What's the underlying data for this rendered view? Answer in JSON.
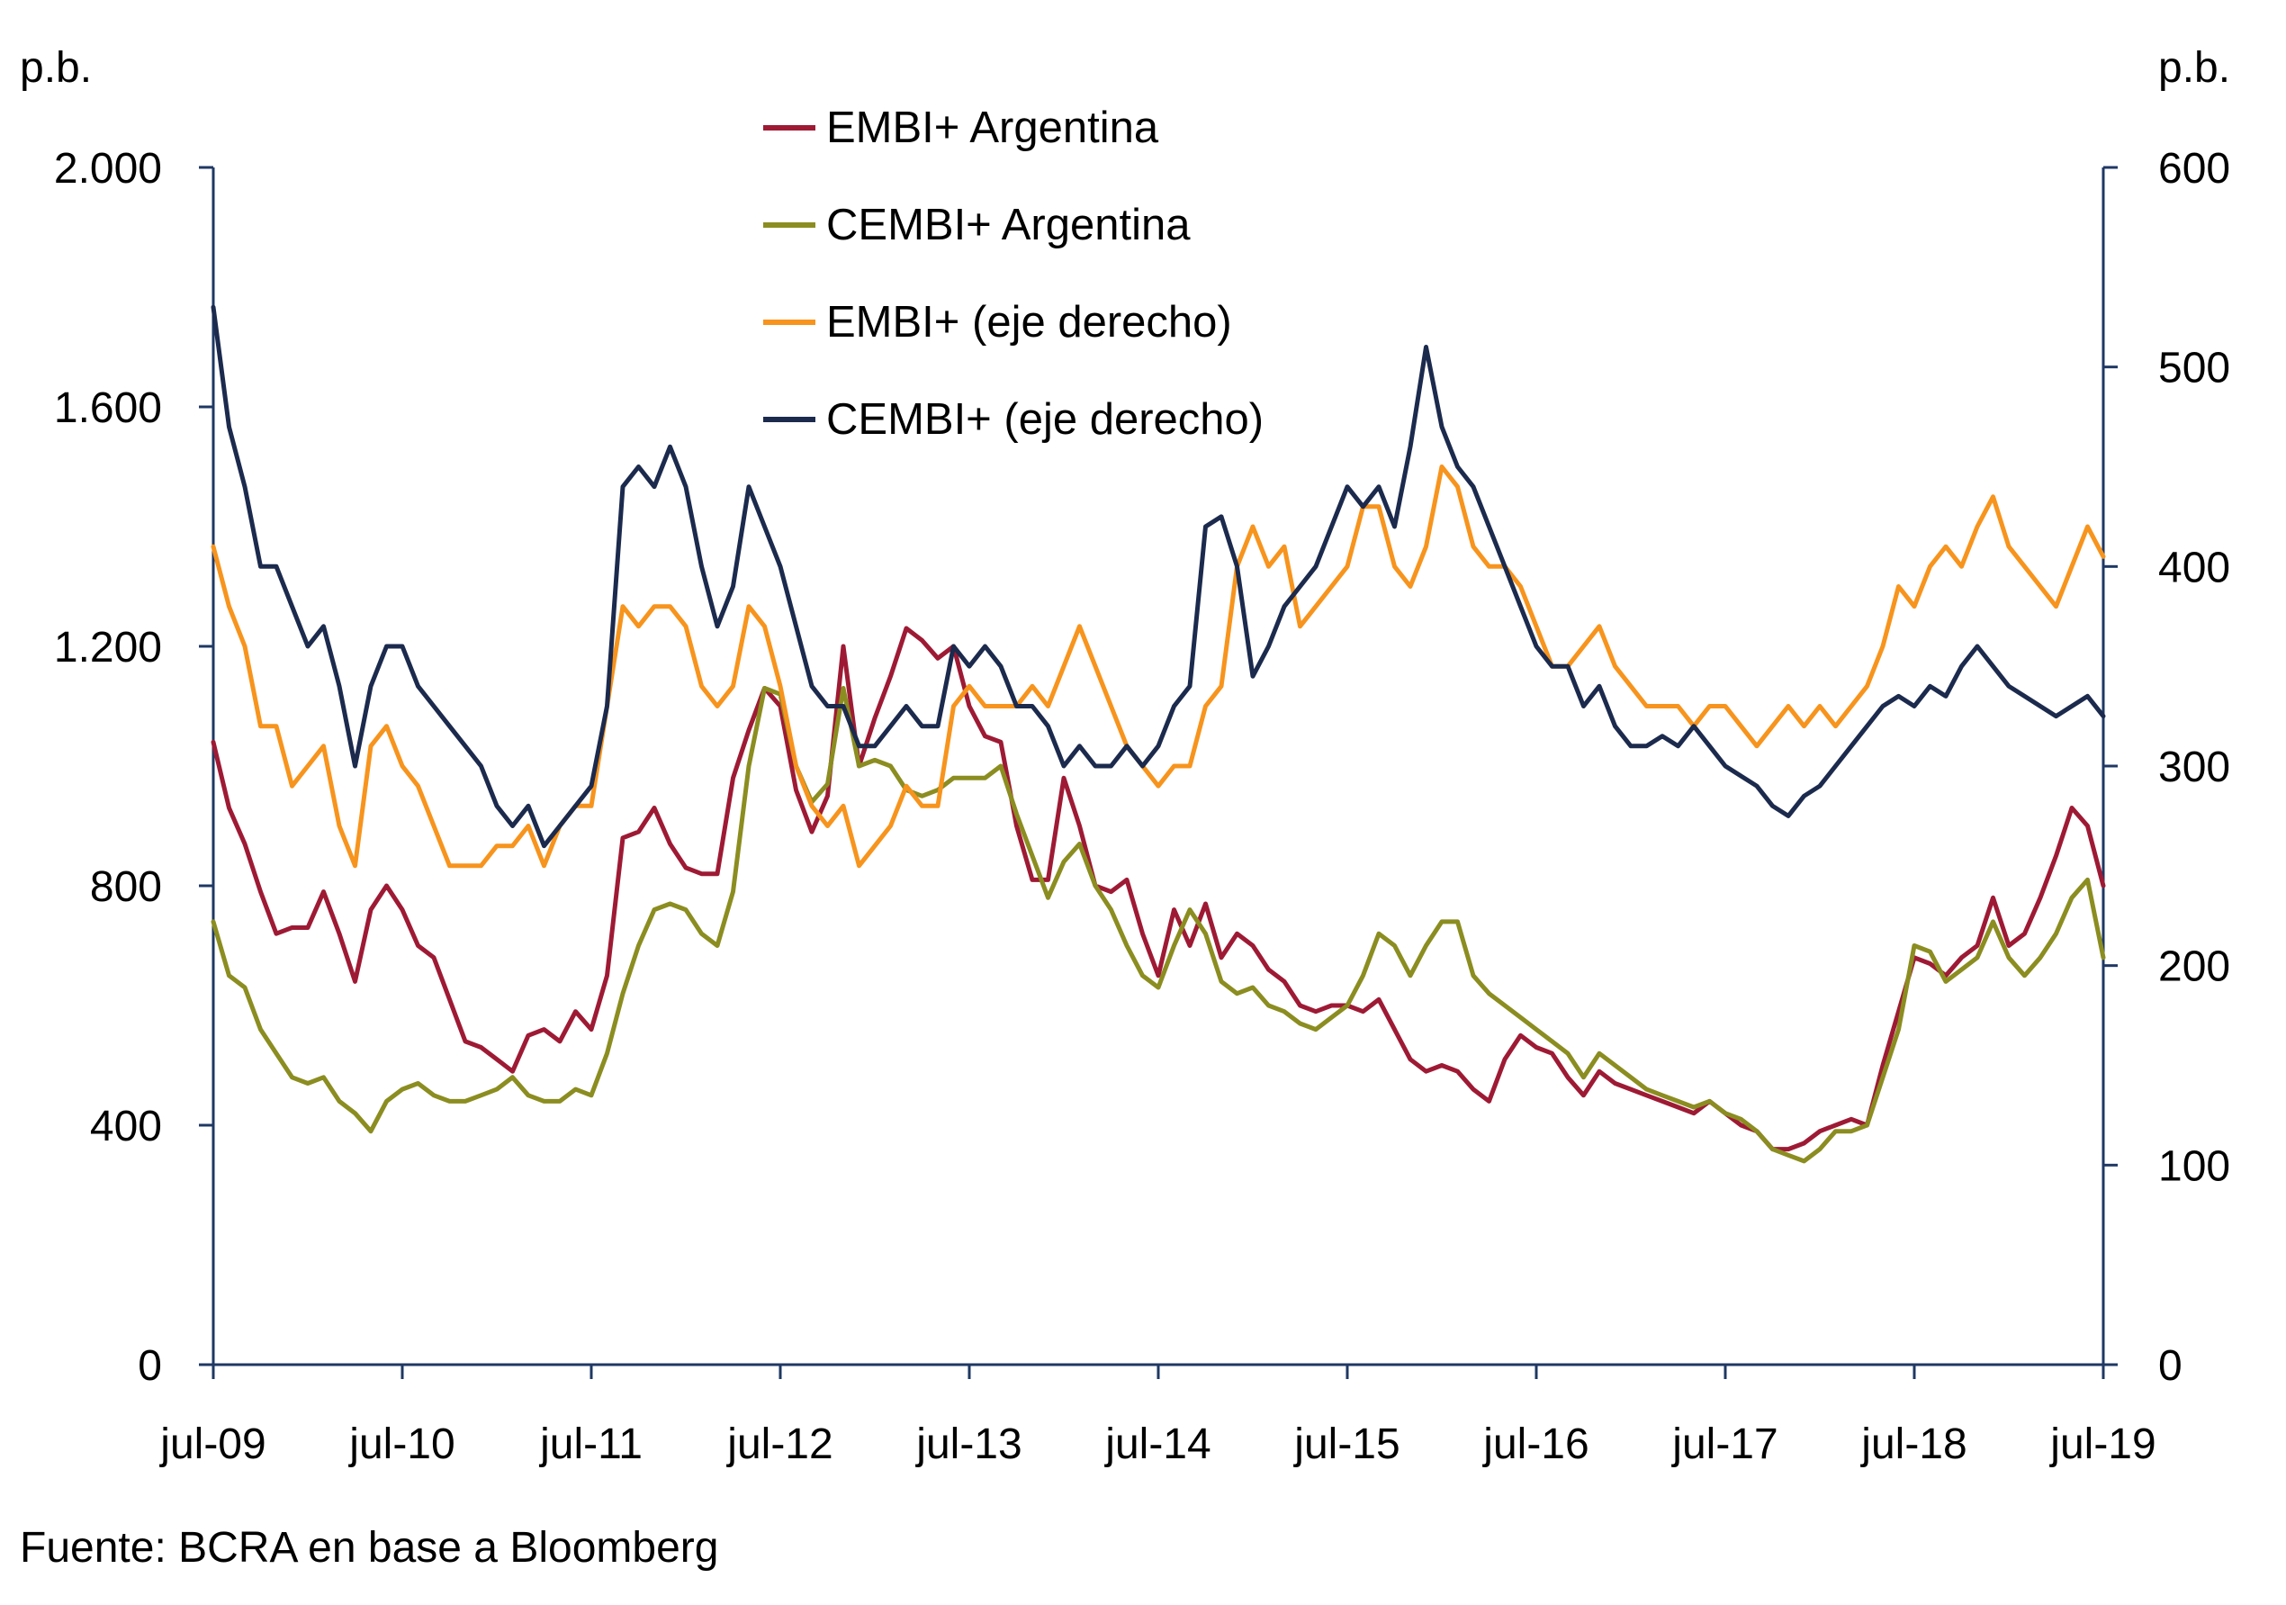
{
  "style": {
    "background": "#FFFFFF",
    "axis_color": "#1F3864",
    "text_color": "#000000"
  },
  "chart_data": {
    "type": "line",
    "x_start": "jul-09",
    "x_end": "jul-19",
    "x_frequency": "monthly",
    "x_tick_labels": [
      "jul-09",
      "jul-10",
      "jul-11",
      "jul-12",
      "jul-13",
      "jul-14",
      "jul-15",
      "jul-16",
      "jul-17",
      "jul-18",
      "jul-19"
    ],
    "left_axis": {
      "unit": "p.b.",
      "min": 0,
      "max": 2000,
      "ticks": [
        0,
        400,
        800,
        1200,
        1600,
        2000
      ],
      "tick_labels": [
        "0",
        "400",
        "800",
        "1.200",
        "1.600",
        "2.000"
      ]
    },
    "right_axis": {
      "unit": "p.b.",
      "min": 0,
      "max": 600,
      "ticks": [
        0,
        100,
        200,
        300,
        400,
        500,
        600
      ],
      "tick_labels": [
        "0",
        "100",
        "200",
        "300",
        "400",
        "500",
        "600"
      ]
    },
    "grid": false,
    "legend_position": "top-center",
    "source": "Fuente: BCRA en base a Bloomberg",
    "series": [
      {
        "id": "embi-argentina",
        "name": "EMBI+ Argentina",
        "axis": "left",
        "color": "#9E1A34",
        "values": [
          1040,
          930,
          870,
          790,
          720,
          730,
          730,
          790,
          720,
          640,
          760,
          800,
          760,
          700,
          680,
          610,
          540,
          530,
          510,
          490,
          550,
          560,
          540,
          590,
          560,
          650,
          880,
          890,
          930,
          870,
          830,
          820,
          820,
          980,
          1060,
          1130,
          1100,
          960,
          890,
          950,
          1200,
          1000,
          1080,
          1150,
          1230,
          1210,
          1180,
          1200,
          1100,
          1050,
          1040,
          900,
          810,
          810,
          980,
          900,
          800,
          790,
          810,
          720,
          650,
          760,
          700,
          770,
          680,
          720,
          700,
          660,
          640,
          600,
          590,
          600,
          600,
          590,
          610,
          560,
          510,
          490,
          500,
          490,
          460,
          440,
          510,
          550,
          530,
          520,
          480,
          450,
          490,
          470,
          460,
          450,
          440,
          430,
          420,
          440,
          420,
          400,
          390,
          360,
          360,
          370,
          390,
          400,
          410,
          400,
          500,
          590,
          680,
          670,
          650,
          680,
          700,
          780,
          700,
          720,
          780,
          850,
          930,
          900,
          800
        ]
      },
      {
        "id": "cembi-argentina",
        "name": "CEMBI+ Argentina",
        "axis": "left",
        "color": "#8B8D20",
        "values": [
          740,
          650,
          630,
          560,
          520,
          480,
          470,
          480,
          440,
          420,
          390,
          440,
          460,
          470,
          450,
          440,
          440,
          450,
          460,
          480,
          450,
          440,
          440,
          460,
          450,
          520,
          620,
          700,
          760,
          770,
          760,
          720,
          700,
          790,
          1000,
          1130,
          1120,
          1000,
          940,
          970,
          1130,
          1000,
          1010,
          1000,
          960,
          950,
          960,
          980,
          980,
          980,
          1000,
          920,
          850,
          780,
          840,
          870,
          800,
          760,
          700,
          650,
          630,
          700,
          760,
          720,
          640,
          620,
          630,
          600,
          590,
          570,
          560,
          580,
          600,
          650,
          720,
          700,
          650,
          700,
          740,
          740,
          650,
          620,
          600,
          580,
          560,
          540,
          520,
          480,
          520,
          500,
          480,
          460,
          450,
          440,
          430,
          440,
          420,
          410,
          390,
          360,
          350,
          340,
          360,
          390,
          390,
          400,
          480,
          560,
          700,
          690,
          640,
          660,
          680,
          740,
          680,
          650,
          680,
          720,
          780,
          810,
          680
        ]
      },
      {
        "id": "embi",
        "name": "EMBI+ (eje derecho)",
        "axis": "right",
        "color": "#F7941D",
        "values": [
          410,
          380,
          360,
          320,
          320,
          290,
          300,
          310,
          270,
          250,
          310,
          320,
          300,
          290,
          270,
          250,
          250,
          250,
          260,
          260,
          270,
          250,
          270,
          280,
          280,
          330,
          380,
          370,
          380,
          380,
          370,
          340,
          330,
          340,
          380,
          370,
          340,
          300,
          280,
          270,
          280,
          250,
          260,
          270,
          290,
          280,
          280,
          330,
          340,
          330,
          330,
          330,
          340,
          330,
          350,
          370,
          350,
          330,
          310,
          300,
          290,
          300,
          300,
          330,
          340,
          400,
          420,
          400,
          410,
          370,
          380,
          390,
          400,
          430,
          430,
          400,
          390,
          410,
          450,
          440,
          410,
          400,
          400,
          390,
          370,
          350,
          350,
          360,
          370,
          350,
          340,
          330,
          330,
          330,
          320,
          330,
          330,
          320,
          310,
          320,
          330,
          320,
          330,
          320,
          330,
          340,
          360,
          390,
          380,
          400,
          410,
          400,
          420,
          435,
          410,
          400,
          390,
          380,
          400,
          420,
          405
        ]
      },
      {
        "id": "cembi",
        "name": "CEMBI+ (eje derecho)",
        "axis": "right",
        "color": "#1B2A4D",
        "values": [
          530,
          470,
          440,
          400,
          400,
          380,
          360,
          370,
          340,
          300,
          340,
          360,
          360,
          340,
          330,
          320,
          310,
          300,
          280,
          270,
          280,
          260,
          270,
          280,
          290,
          330,
          440,
          450,
          440,
          460,
          440,
          400,
          370,
          390,
          440,
          420,
          400,
          370,
          340,
          330,
          330,
          310,
          310,
          320,
          330,
          320,
          320,
          360,
          350,
          360,
          350,
          330,
          330,
          320,
          300,
          310,
          300,
          300,
          310,
          300,
          310,
          330,
          340,
          420,
          425,
          400,
          345,
          360,
          380,
          390,
          400,
          420,
          440,
          430,
          440,
          420,
          460,
          510,
          470,
          450,
          440,
          420,
          400,
          380,
          360,
          350,
          350,
          330,
          340,
          320,
          310,
          310,
          315,
          310,
          320,
          310,
          300,
          295,
          290,
          280,
          275,
          285,
          290,
          300,
          310,
          320,
          330,
          335,
          330,
          340,
          335,
          350,
          360,
          350,
          340,
          335,
          330,
          325,
          330,
          335,
          325
        ]
      }
    ]
  }
}
